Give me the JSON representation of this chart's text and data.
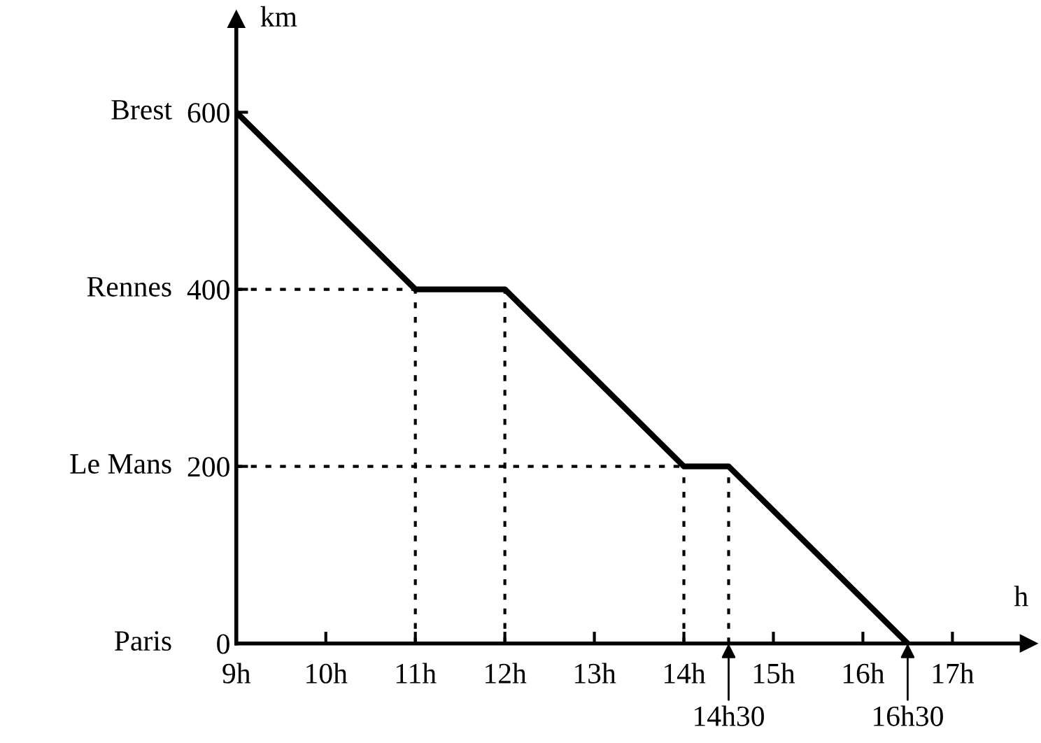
{
  "chart_data": {
    "type": "line",
    "xlabel": "h",
    "ylabel": "km",
    "x": [
      9,
      11,
      12,
      14,
      14.5,
      16.5
    ],
    "series": [
      {
        "color": "#000000",
        "values": [
          600,
          400,
          400,
          200,
          200,
          0
        ]
      }
    ],
    "xlim": [
      9,
      17.85
    ],
    "ylim": [
      0,
      705
    ],
    "xticks": [
      {
        "value": 9,
        "label": "9h"
      },
      {
        "value": 10,
        "label": "10h"
      },
      {
        "value": 11,
        "label": "11h"
      },
      {
        "value": 12,
        "label": "12h"
      },
      {
        "value": 13,
        "label": "13h"
      },
      {
        "value": 14,
        "label": "14h"
      },
      {
        "value": 15,
        "label": "15h"
      },
      {
        "value": 16,
        "label": "16h"
      },
      {
        "value": 17,
        "label": "17h"
      }
    ],
    "yticks": [
      0,
      200,
      400,
      600
    ],
    "ref_lines": [
      {
        "axis": "y",
        "value": 400,
        "line_style": "dotted",
        "color": "#000000"
      },
      {
        "axis": "y",
        "value": 200,
        "line_style": "dotted",
        "color": "#000000"
      },
      {
        "axis": "x",
        "value": 11,
        "line_style": "dotted",
        "color": "#000000"
      },
      {
        "axis": "x",
        "value": 12,
        "line_style": "dotted",
        "color": "#000000"
      },
      {
        "axis": "x",
        "value": 14,
        "line_style": "dotted",
        "color": "#000000"
      },
      {
        "axis": "x",
        "value": 14.5,
        "line_style": "dotted",
        "color": "#000000"
      }
    ],
    "annotations": [
      "Brest",
      "Rennes",
      "Le Mans",
      "Paris",
      {
        "text": "14h30",
        "x": 14.5,
        "y": 0
      },
      {
        "text": "16h30",
        "x": 16.5,
        "y": 0
      }
    ],
    "grid": false,
    "legend": false,
    "marker": "none",
    "line_style": "solid"
  }
}
